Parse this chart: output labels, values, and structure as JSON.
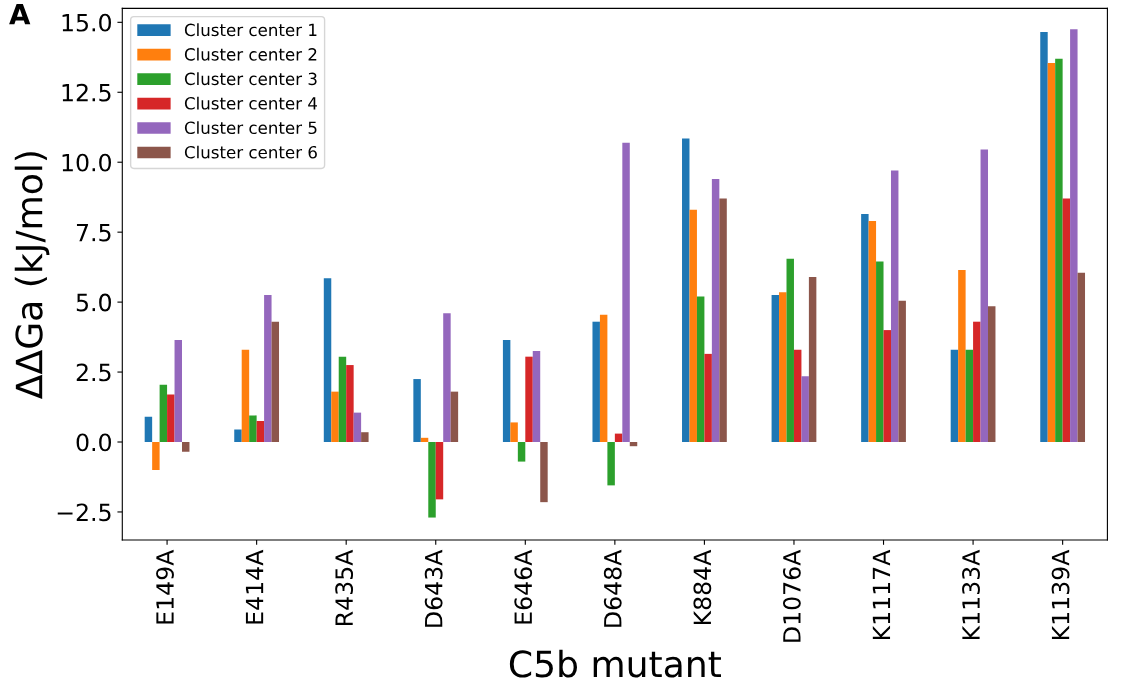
{
  "chart_data": {
    "type": "bar",
    "xlabel": "C5b mutant",
    "ylabel": "ΔΔGa (kJ/mol)",
    "annotations": [
      "A"
    ],
    "categories": [
      "E149A",
      "E414A",
      "R435A",
      "D643A",
      "E646A",
      "D648A",
      "K884A",
      "D1076A",
      "K1117A",
      "K1133A",
      "K1139A"
    ],
    "series": [
      {
        "name": "Cluster center 1",
        "color": "#1f77b4",
        "values": [
          0.9,
          0.45,
          5.85,
          2.25,
          3.65,
          4.3,
          10.85,
          5.25,
          8.15,
          3.3,
          14.65
        ]
      },
      {
        "name": "Cluster center 2",
        "color": "#ff7f0e",
        "values": [
          -1.0,
          3.3,
          1.8,
          0.15,
          0.7,
          4.55,
          8.3,
          5.35,
          7.9,
          6.15,
          13.55
        ]
      },
      {
        "name": "Cluster center 3",
        "color": "#2ca02c",
        "values": [
          2.05,
          0.95,
          3.05,
          -2.7,
          -0.7,
          -1.55,
          5.2,
          6.55,
          6.45,
          3.3,
          13.7
        ]
      },
      {
        "name": "Cluster center 4",
        "color": "#d62728",
        "values": [
          1.7,
          0.75,
          2.75,
          -2.05,
          3.05,
          0.3,
          3.15,
          3.3,
          4.0,
          4.3,
          8.7
        ]
      },
      {
        "name": "Cluster center 5",
        "color": "#9467bd",
        "values": [
          3.65,
          5.25,
          1.05,
          4.6,
          3.25,
          10.7,
          9.4,
          2.35,
          9.7,
          10.45,
          14.75
        ]
      },
      {
        "name": "Cluster center 6",
        "color": "#8c564b",
        "values": [
          -0.35,
          4.3,
          0.35,
          1.8,
          -2.15,
          -0.15,
          8.7,
          5.9,
          5.05,
          4.85,
          6.05
        ]
      }
    ],
    "ylim": [
      -3.5,
      15.5
    ],
    "yticks": [
      {
        "value": -2.5,
        "label": "−2.5"
      },
      {
        "value": 0,
        "label": "0.0"
      },
      {
        "value": 2.5,
        "label": "2.5"
      },
      {
        "value": 5,
        "label": "5.0"
      },
      {
        "value": 7.5,
        "label": "7.5"
      },
      {
        "value": 10,
        "label": "10.0"
      },
      {
        "value": 12.5,
        "label": "12.5"
      },
      {
        "value": 15,
        "label": "15.0"
      }
    ],
    "legend": "top left",
    "grid": false
  }
}
